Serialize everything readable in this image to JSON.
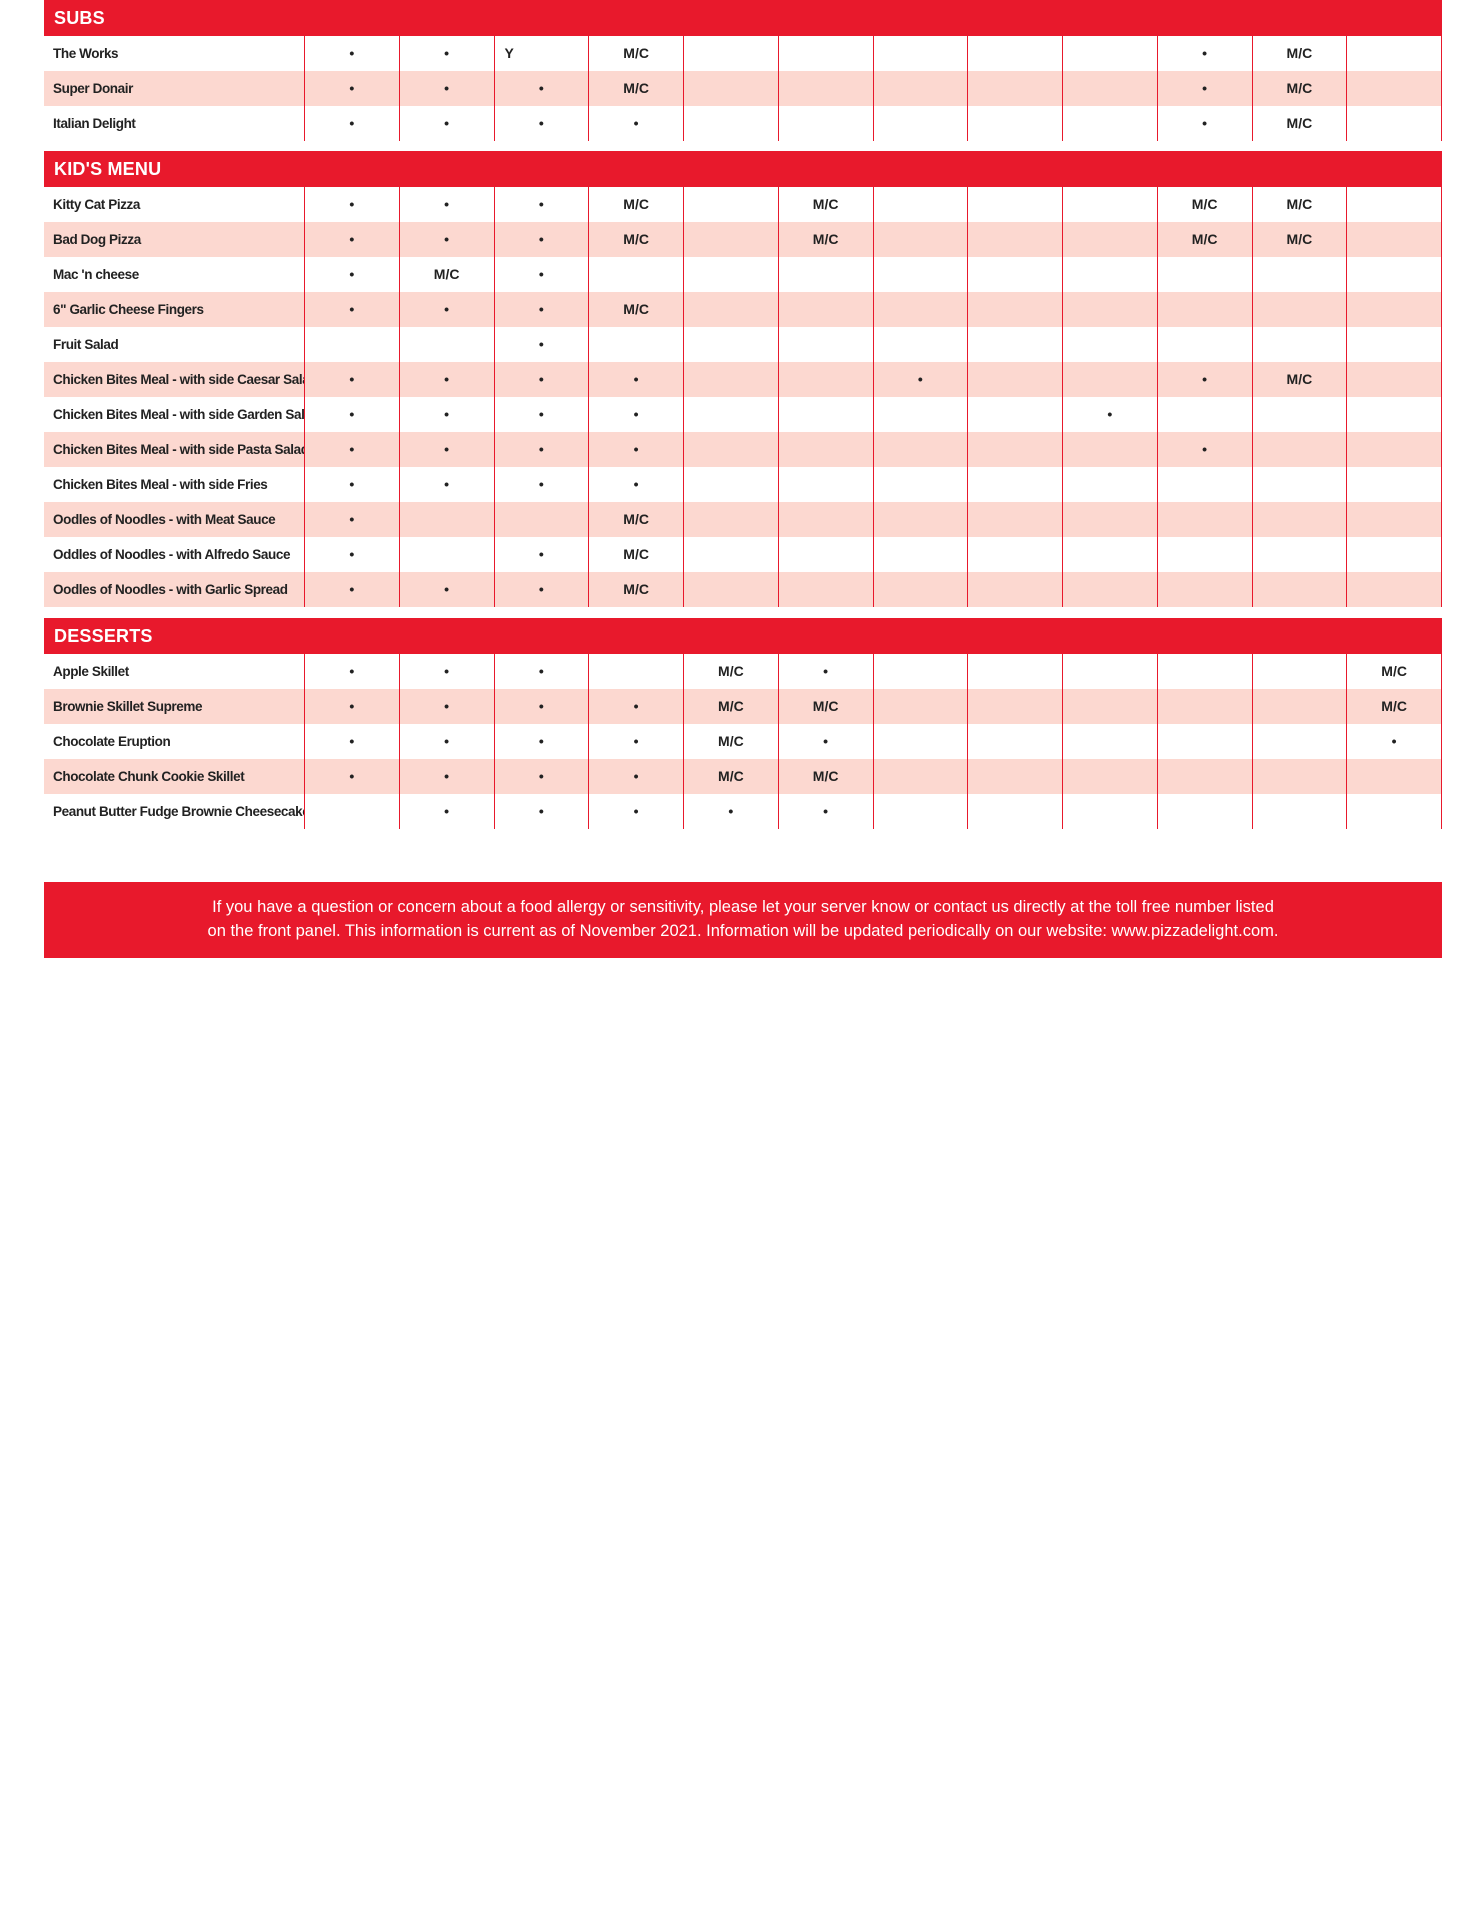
{
  "colors": {
    "accent": "#E8192C",
    "row_alt": "#FCD8D0"
  },
  "sections": [
    {
      "title": "SUBS",
      "rows": [
        {
          "name": "The Works",
          "cells": [
            "•",
            "•",
            "Y",
            "M/C",
            "",
            "",
            "",
            "",
            "",
            "•",
            "M/C",
            ""
          ]
        },
        {
          "name": "Super Donair",
          "cells": [
            "•",
            "•",
            "•",
            "M/C",
            "",
            "",
            "",
            "",
            "",
            "•",
            "M/C",
            ""
          ]
        },
        {
          "name": "Italian Delight",
          "cells": [
            "•",
            "•",
            "•",
            "•",
            "",
            "",
            "",
            "",
            "",
            "•",
            "M/C",
            ""
          ]
        }
      ]
    },
    {
      "title": "KID'S MENU",
      "rows": [
        {
          "name": "Kitty Cat Pizza",
          "cells": [
            "•",
            "•",
            "•",
            "M/C",
            "",
            "M/C",
            "",
            "",
            "",
            "M/C",
            "M/C",
            ""
          ]
        },
        {
          "name": "Bad Dog Pizza",
          "cells": [
            "•",
            "•",
            "•",
            "M/C",
            "",
            "M/C",
            "",
            "",
            "",
            "M/C",
            "M/C",
            ""
          ]
        },
        {
          "name": "Mac 'n cheese",
          "cells": [
            "•",
            "M/C",
            "•",
            "",
            "",
            "",
            "",
            "",
            "",
            "",
            "",
            ""
          ]
        },
        {
          "name": "6\" Garlic Cheese Fingers",
          "cells": [
            "•",
            "•",
            "•",
            "M/C",
            "",
            "",
            "",
            "",
            "",
            "",
            "",
            ""
          ]
        },
        {
          "name": "Fruit Salad",
          "cells": [
            "",
            "",
            "•",
            "",
            "",
            "",
            "",
            "",
            "",
            "",
            "",
            ""
          ]
        },
        {
          "name": "Chicken Bites Meal - with side Caesar Salad",
          "cells": [
            "•",
            "•",
            "•",
            "•",
            "",
            "",
            "•",
            "",
            "",
            "•",
            "M/C",
            ""
          ]
        },
        {
          "name": "Chicken Bites Meal - with side Garden Salad",
          "cells": [
            "•",
            "•",
            "•",
            "•",
            "",
            "",
            "",
            "",
            "•",
            "",
            "",
            ""
          ]
        },
        {
          "name": "Chicken Bites Meal - with side Pasta Salad",
          "cells": [
            "•",
            "•",
            "•",
            "•",
            "",
            "",
            "",
            "",
            "",
            "•",
            "",
            ""
          ]
        },
        {
          "name": "Chicken Bites Meal - with side Fries",
          "cells": [
            "•",
            "•",
            "•",
            "•",
            "",
            "",
            "",
            "",
            "",
            "",
            "",
            ""
          ]
        },
        {
          "name": "Oodles of Noodles - with Meat Sauce",
          "cells": [
            "•",
            "",
            "",
            "M/C",
            "",
            "",
            "",
            "",
            "",
            "",
            "",
            ""
          ]
        },
        {
          "name": "Oddles of Noodles - with Alfredo Sauce",
          "cells": [
            "•",
            "",
            "•",
            "M/C",
            "",
            "",
            "",
            "",
            "",
            "",
            "",
            ""
          ]
        },
        {
          "name": "Oodles of Noodles - with Garlic Spread",
          "cells": [
            "•",
            "•",
            "•",
            "M/C",
            "",
            "",
            "",
            "",
            "",
            "",
            "",
            ""
          ]
        }
      ]
    },
    {
      "title": "DESSERTS",
      "rows": [
        {
          "name": "Apple Skillet",
          "cells": [
            "•",
            "•",
            "•",
            "",
            "M/C",
            "•",
            "",
            "",
            "",
            "",
            "",
            "M/C"
          ]
        },
        {
          "name": "Brownie Skillet Supreme",
          "cells": [
            "•",
            "•",
            "•",
            "•",
            "M/C",
            "M/C",
            "",
            "",
            "",
            "",
            "",
            "M/C"
          ]
        },
        {
          "name": "Chocolate Eruption",
          "cells": [
            "•",
            "•",
            "•",
            "•",
            "M/C",
            "•",
            "",
            "",
            "",
            "",
            "",
            "•"
          ]
        },
        {
          "name": "Chocolate Chunk Cookie Skillet",
          "cells": [
            "•",
            "•",
            "•",
            "•",
            "M/C",
            "M/C",
            "",
            "",
            "",
            "",
            "",
            ""
          ]
        },
        {
          "name": "Peanut Butter Fudge Brownie Cheesecake",
          "cells": [
            "",
            "•",
            "•",
            "•",
            "•",
            "•",
            "",
            "",
            "",
            "",
            "",
            ""
          ]
        }
      ]
    }
  ],
  "footer": {
    "line1": "If you have a question or concern about a food allergy or sensitivity, please let your server know or contact us directly at the toll free number listed",
    "line2": "on the front panel. This information is current as of November 2021. Information will be updated periodically on our website: www.pizzadelight.com."
  }
}
